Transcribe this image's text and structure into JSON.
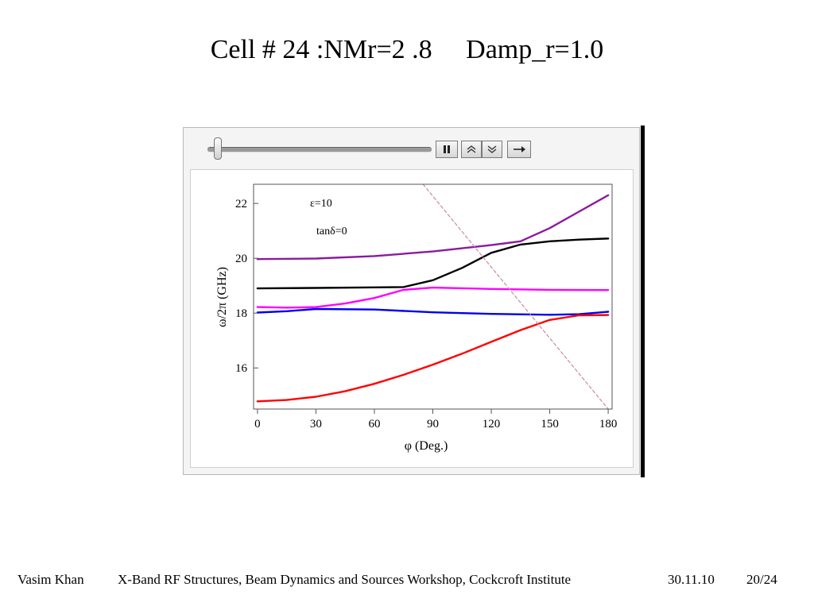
{
  "slide": {
    "title": "Cell # 24 :NMr=2 .8     Damp_r=1.0"
  },
  "controls": {
    "slider_value": 0.03,
    "pause_icon": "pause-icon",
    "faster_icon": "double-chevron-up-icon",
    "slower_icon": "double-chevron-down-icon",
    "direction_icon": "right-arrow-icon"
  },
  "chart_data": {
    "type": "line",
    "xlabel": "φ (Deg.)",
    "ylabel": "ω/2π (GHz)",
    "xlim": [
      -2,
      182
    ],
    "ylim": [
      14.5,
      22.7
    ],
    "xticks": [
      0,
      30,
      60,
      90,
      120,
      150,
      180
    ],
    "yticks": [
      16,
      18,
      20,
      22
    ],
    "annotations": [
      "ε=10",
      "tanδ=0"
    ],
    "grid": false,
    "series": [
      {
        "color": "#8b1a9f",
        "x": [
          0,
          30,
          60,
          90,
          120,
          135,
          150,
          165,
          180
        ],
        "y": [
          19.97,
          19.99,
          20.08,
          20.25,
          20.48,
          20.62,
          21.1,
          21.7,
          22.3
        ]
      },
      {
        "color": "#000000",
        "x": [
          0,
          30,
          60,
          75,
          90,
          105,
          120,
          135,
          150,
          165,
          180
        ],
        "y": [
          18.9,
          18.92,
          18.94,
          18.95,
          19.2,
          19.65,
          20.2,
          20.5,
          20.62,
          20.68,
          20.72
        ]
      },
      {
        "color": "#ff00ff",
        "x": [
          0,
          15,
          30,
          45,
          60,
          75,
          90,
          120,
          150,
          180
        ],
        "y": [
          18.22,
          18.2,
          18.22,
          18.35,
          18.55,
          18.85,
          18.93,
          18.88,
          18.85,
          18.84
        ]
      },
      {
        "color": "#0000ee",
        "x": [
          0,
          15,
          30,
          60,
          90,
          120,
          150,
          165,
          180
        ],
        "y": [
          18.02,
          18.07,
          18.15,
          18.13,
          18.03,
          17.97,
          17.94,
          17.96,
          18.05
        ]
      },
      {
        "color": "#ff0000",
        "x": [
          0,
          15,
          30,
          45,
          60,
          75,
          90,
          105,
          120,
          135,
          150,
          165,
          180
        ],
        "y": [
          14.78,
          14.83,
          14.95,
          15.15,
          15.42,
          15.75,
          16.12,
          16.52,
          16.95,
          17.38,
          17.75,
          17.92,
          17.93
        ]
      },
      {
        "color": "#c98aa5",
        "dashed": true,
        "x": [
          85,
          180
        ],
        "y": [
          22.7,
          14.5
        ]
      }
    ]
  },
  "footer": {
    "author": "Vasim Khan",
    "event": "X-Band RF Structures, Beam Dynamics and Sources Workshop, Cockcroft Institute",
    "date": "30.11.10",
    "page": "20/24"
  }
}
